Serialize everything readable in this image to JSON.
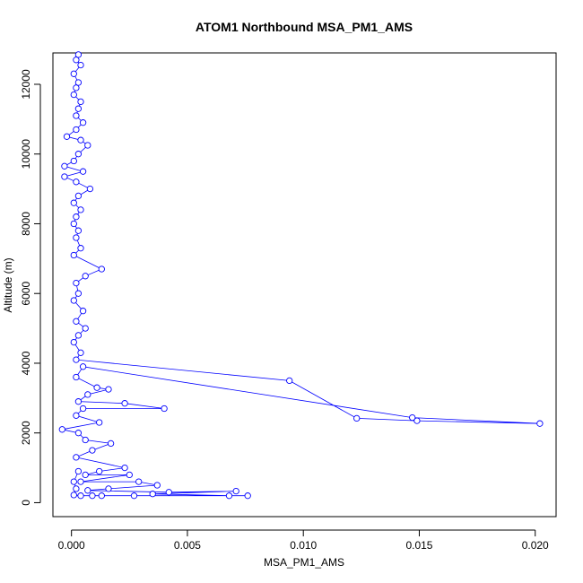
{
  "chart_data": {
    "type": "line",
    "title": "ATOM1 Northbound MSA_PM1_AMS",
    "xlabel": "MSA_PM1_AMS",
    "ylabel": "Altitude (m)",
    "xlim": [
      -0.0008,
      0.0209
    ],
    "ylim": [
      -400,
      12900
    ],
    "x_ticks": [
      0.0,
      0.005,
      0.01,
      0.015,
      0.02
    ],
    "x_tick_labels": [
      "0.000",
      "0.005",
      "0.010",
      "0.015",
      "0.020"
    ],
    "y_ticks": [
      0,
      2000,
      4000,
      6000,
      8000,
      10000,
      12000
    ],
    "y_tick_labels": [
      "0",
      "2000",
      "4000",
      "6000",
      "8000",
      "10000",
      "12000"
    ],
    "grid": false,
    "legend": "none",
    "marker": "open-circle",
    "series_color": "#0000ff",
    "series": [
      {
        "name": "",
        "points": [
          [
            0.0003,
            12850
          ],
          [
            0.0002,
            12700
          ],
          [
            0.0004,
            12550
          ],
          [
            0.0001,
            12300
          ],
          [
            0.0003,
            12050
          ],
          [
            0.0002,
            11900
          ],
          [
            0.0001,
            11700
          ],
          [
            0.0004,
            11500
          ],
          [
            0.0003,
            11300
          ],
          [
            0.0002,
            11100
          ],
          [
            0.0005,
            10900
          ],
          [
            0.0002,
            10700
          ],
          [
            -0.0002,
            10500
          ],
          [
            0.0004,
            10400
          ],
          [
            0.0007,
            10250
          ],
          [
            0.0003,
            10000
          ],
          [
            0.0001,
            9800
          ],
          [
            -0.0003,
            9650
          ],
          [
            0.0005,
            9500
          ],
          [
            -0.0003,
            9350
          ],
          [
            0.0002,
            9200
          ],
          [
            0.0008,
            9000
          ],
          [
            0.0003,
            8800
          ],
          [
            0.0001,
            8600
          ],
          [
            0.0004,
            8400
          ],
          [
            0.0002,
            8200
          ],
          [
            0.0001,
            8000
          ],
          [
            0.0003,
            7800
          ],
          [
            0.0002,
            7600
          ],
          [
            0.0004,
            7300
          ],
          [
            0.0001,
            7100
          ],
          [
            0.0013,
            6700
          ],
          [
            0.0006,
            6500
          ],
          [
            0.0002,
            6300
          ],
          [
            0.0003,
            6000
          ],
          [
            0.0001,
            5800
          ],
          [
            0.0005,
            5500
          ],
          [
            0.0002,
            5200
          ],
          [
            0.0006,
            5000
          ],
          [
            0.0003,
            4800
          ],
          [
            0.0001,
            4600
          ],
          [
            0.0004,
            4300
          ],
          [
            0.0002,
            4100
          ],
          [
            0.0094,
            3500
          ],
          [
            0.0123,
            2420
          ],
          [
            0.0149,
            2350
          ],
          [
            0.0202,
            2270
          ],
          [
            0.0147,
            2440
          ],
          [
            0.0005,
            3900
          ],
          [
            0.0002,
            3600
          ],
          [
            0.0011,
            3300
          ],
          [
            0.0016,
            3250
          ],
          [
            0.0007,
            3100
          ],
          [
            0.0003,
            2900
          ],
          [
            0.0023,
            2850
          ],
          [
            0.004,
            2700
          ],
          [
            0.0005,
            2700
          ],
          [
            0.0002,
            2500
          ],
          [
            0.0012,
            2300
          ],
          [
            -0.0004,
            2100
          ],
          [
            0.0003,
            2000
          ],
          [
            0.0006,
            1800
          ],
          [
            0.0017,
            1700
          ],
          [
            0.0009,
            1500
          ],
          [
            0.0002,
            1300
          ],
          [
            0.0023,
            1000
          ],
          [
            0.0012,
            900
          ],
          [
            0.0006,
            800
          ],
          [
            0.0025,
            800
          ],
          [
            0.0004,
            600
          ],
          [
            0.0029,
            600
          ],
          [
            0.0037,
            500
          ],
          [
            0.0016,
            400
          ],
          [
            0.0007,
            350
          ],
          [
            0.0042,
            300
          ],
          [
            0.0071,
            330
          ],
          [
            0.0035,
            250
          ],
          [
            0.0068,
            200
          ],
          [
            0.0076,
            200
          ],
          [
            0.0027,
            200
          ],
          [
            0.0013,
            200
          ],
          [
            0.0009,
            200
          ],
          [
            0.0004,
            200
          ],
          [
            0.0001,
            220
          ],
          [
            0.0002,
            400
          ],
          [
            0.0001,
            600
          ],
          [
            0.0003,
            900
          ]
        ]
      }
    ]
  }
}
